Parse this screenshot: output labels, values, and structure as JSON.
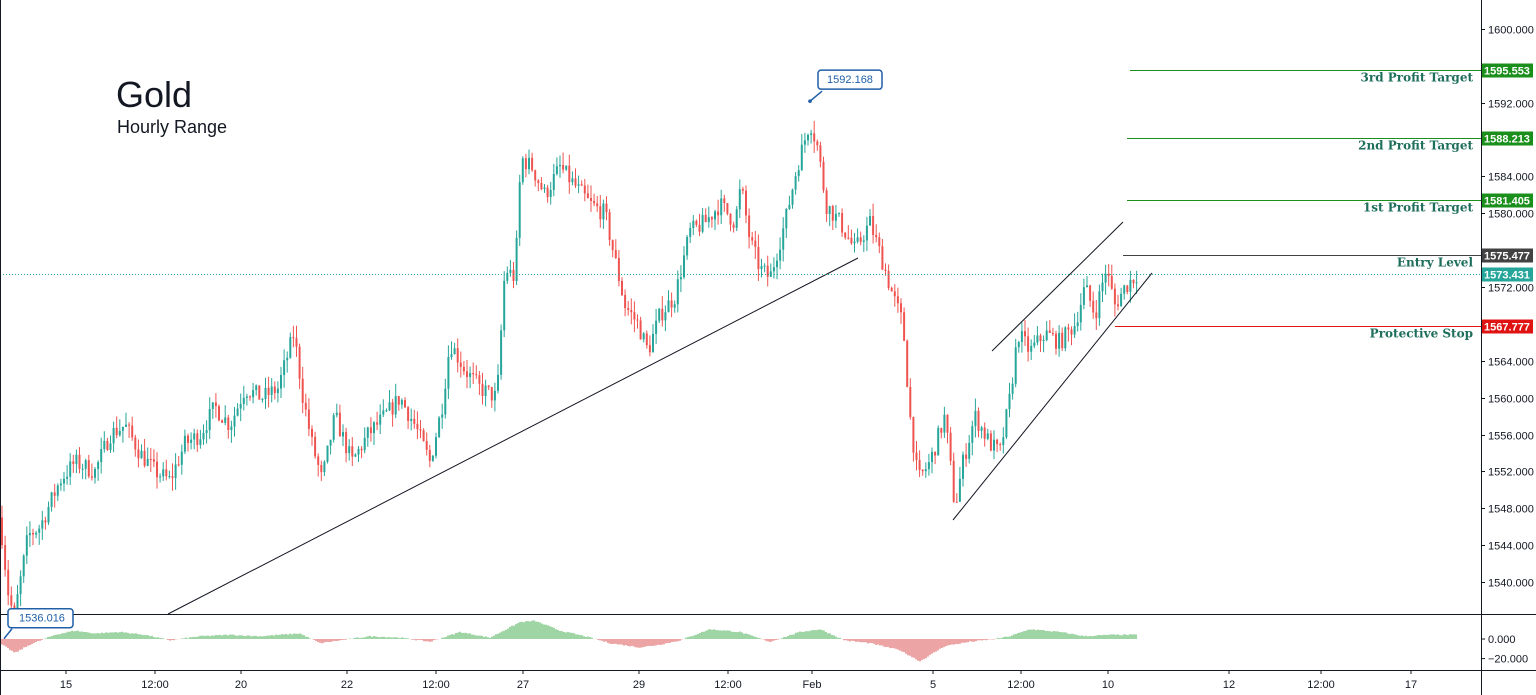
{
  "header": {
    "title": "Gold",
    "subtitle": "Hourly Range"
  },
  "colors": {
    "up": "#26a69a",
    "down": "#ef5350",
    "target": "#1b8f1b",
    "entry": "#424242",
    "stop": "#e01313",
    "current": "#26a69a",
    "callout": "#1f5fa8",
    "axis": "#131722",
    "level_text": "#1e6e5c"
  },
  "chart_data": [
    {
      "type": "candlestick",
      "title": "Gold",
      "subtitle": "Hourly Range",
      "x_tick_labels": [
        "15",
        "12:00",
        "20",
        "22",
        "12:00",
        "27",
        "29",
        "12:00",
        "Feb",
        "5",
        "12:00",
        "10",
        "12",
        "12:00",
        "17"
      ],
      "y_tick_labels": [
        "1600.000",
        "1592.000",
        "1584.000",
        "1580.000",
        "1572.000",
        "1564.000",
        "1560.000",
        "1556.000",
        "1552.000",
        "1548.000",
        "1544.000",
        "1540.000"
      ],
      "ylim": [
        1535.5,
        1602.8
      ],
      "price_path": [
        [
          0,
          1547
        ],
        [
          8,
          1539
        ],
        [
          14,
          1536.016
        ],
        [
          28,
          1545
        ],
        [
          40,
          1546
        ],
        [
          60,
          1551
        ],
        [
          75,
          1553
        ],
        [
          95,
          1552
        ],
        [
          110,
          1556
        ],
        [
          125,
          1557
        ],
        [
          140,
          1554
        ],
        [
          155,
          1552
        ],
        [
          170,
          1551
        ],
        [
          185,
          1555
        ],
        [
          200,
          1556
        ],
        [
          215,
          1559
        ],
        [
          230,
          1557
        ],
        [
          245,
          1561
        ],
        [
          262,
          1560
        ],
        [
          278,
          1561
        ],
        [
          294,
          1567
        ],
        [
          303,
          1560
        ],
        [
          312,
          1555
        ],
        [
          322,
          1551
        ],
        [
          335,
          1558
        ],
        [
          352,
          1553
        ],
        [
          368,
          1556
        ],
        [
          385,
          1558
        ],
        [
          400,
          1560
        ],
        [
          415,
          1557
        ],
        [
          430,
          1553
        ],
        [
          442,
          1559
        ],
        [
          450,
          1566
        ],
        [
          465,
          1563
        ],
        [
          480,
          1561
        ],
        [
          497,
          1560
        ],
        [
          505,
          1574
        ],
        [
          515,
          1573
        ],
        [
          521,
          1586
        ],
        [
          532,
          1585
        ],
        [
          545,
          1582
        ],
        [
          560,
          1585
        ],
        [
          575,
          1583
        ],
        [
          590,
          1581
        ],
        [
          605,
          1580
        ],
        [
          615,
          1575
        ],
        [
          625,
          1570
        ],
        [
          638,
          1568
        ],
        [
          648,
          1565
        ],
        [
          660,
          1569
        ],
        [
          675,
          1571
        ],
        [
          690,
          1578
        ],
        [
          705,
          1579
        ],
        [
          720,
          1581
        ],
        [
          735,
          1579
        ],
        [
          741,
          1583
        ],
        [
          750,
          1577
        ],
        [
          760,
          1574
        ],
        [
          770,
          1573
        ],
        [
          785,
          1579
        ],
        [
          797,
          1585
        ],
        [
          810,
          1590
        ],
        [
          818,
          1587
        ],
        [
          826,
          1581
        ],
        [
          840,
          1579
        ],
        [
          855,
          1576
        ],
        [
          870,
          1579
        ],
        [
          882,
          1575
        ],
        [
          893,
          1571
        ],
        [
          903,
          1568
        ],
        [
          910,
          1558
        ],
        [
          918,
          1551
        ],
        [
          930,
          1553
        ],
        [
          945,
          1558
        ],
        [
          955,
          1548
        ],
        [
          963,
          1553
        ],
        [
          975,
          1558
        ],
        [
          990,
          1555
        ],
        [
          1000,
          1554
        ],
        [
          1010,
          1560
        ],
        [
          1018,
          1567
        ],
        [
          1030,
          1565
        ],
        [
          1045,
          1567
        ],
        [
          1060,
          1566
        ],
        [
          1075,
          1568
        ],
        [
          1085,
          1572
        ],
        [
          1095,
          1569
        ],
        [
          1106,
          1574
        ],
        [
          1115,
          1570
        ],
        [
          1125,
          1572
        ],
        [
          1137,
          1573.431
        ]
      ],
      "histogram_path": [
        [
          0,
          -0.3
        ],
        [
          15,
          -1
        ],
        [
          30,
          -0.4
        ],
        [
          55,
          0.3
        ],
        [
          75,
          0.6
        ],
        [
          95,
          0.4
        ],
        [
          120,
          0.5
        ],
        [
          145,
          0.3
        ],
        [
          170,
          -0.1
        ],
        [
          200,
          0.2
        ],
        [
          230,
          0.3
        ],
        [
          260,
          0.2
        ],
        [
          300,
          0.4
        ],
        [
          320,
          -0.3
        ],
        [
          340,
          -0.1
        ],
        [
          370,
          0.2
        ],
        [
          400,
          0.1
        ],
        [
          430,
          -0.2
        ],
        [
          460,
          0.5
        ],
        [
          490,
          0.1
        ],
        [
          520,
          1.2
        ],
        [
          535,
          1.3
        ],
        [
          560,
          0.6
        ],
        [
          585,
          0.2
        ],
        [
          610,
          -0.3
        ],
        [
          640,
          -0.6
        ],
        [
          660,
          -0.4
        ],
        [
          680,
          -0.1
        ],
        [
          710,
          0.7
        ],
        [
          740,
          0.5
        ],
        [
          770,
          -0.2
        ],
        [
          800,
          0.5
        ],
        [
          820,
          0.7
        ],
        [
          845,
          -0.1
        ],
        [
          870,
          -0.3
        ],
        [
          900,
          -0.8
        ],
        [
          920,
          -1.6
        ],
        [
          945,
          -0.5
        ],
        [
          970,
          -0.2
        ],
        [
          995,
          0
        ],
        [
          1010,
          0.2
        ],
        [
          1030,
          0.7
        ],
        [
          1060,
          0.5
        ],
        [
          1085,
          0.2
        ],
        [
          1110,
          0.3
        ],
        [
          1137,
          0.3
        ]
      ],
      "histogram_axis": {
        "labels": [
          "0.000",
          "−20.000"
        ]
      },
      "levels": [
        {
          "name": "3rd Profit Target",
          "value": 1595.553,
          "label": "1595.553",
          "kind": "target"
        },
        {
          "name": "2nd Profit Target",
          "value": 1588.213,
          "label": "1588.213",
          "kind": "target"
        },
        {
          "name": "1st Profit Target",
          "value": 1581.405,
          "label": "1581.405",
          "kind": "target"
        },
        {
          "name": "Entry Level",
          "value": 1575.477,
          "label": "1575.477",
          "kind": "entry"
        },
        {
          "name": "Protective Stop",
          "value": 1567.777,
          "label": "1567.777",
          "kind": "stop"
        }
      ],
      "current_price": {
        "value": 1573.431,
        "label": "1573.431"
      },
      "callouts": [
        {
          "label": "1592.168",
          "value": 1592.168
        },
        {
          "label": "1536.016",
          "value": 1536.016
        }
      ],
      "grid": false
    }
  ]
}
